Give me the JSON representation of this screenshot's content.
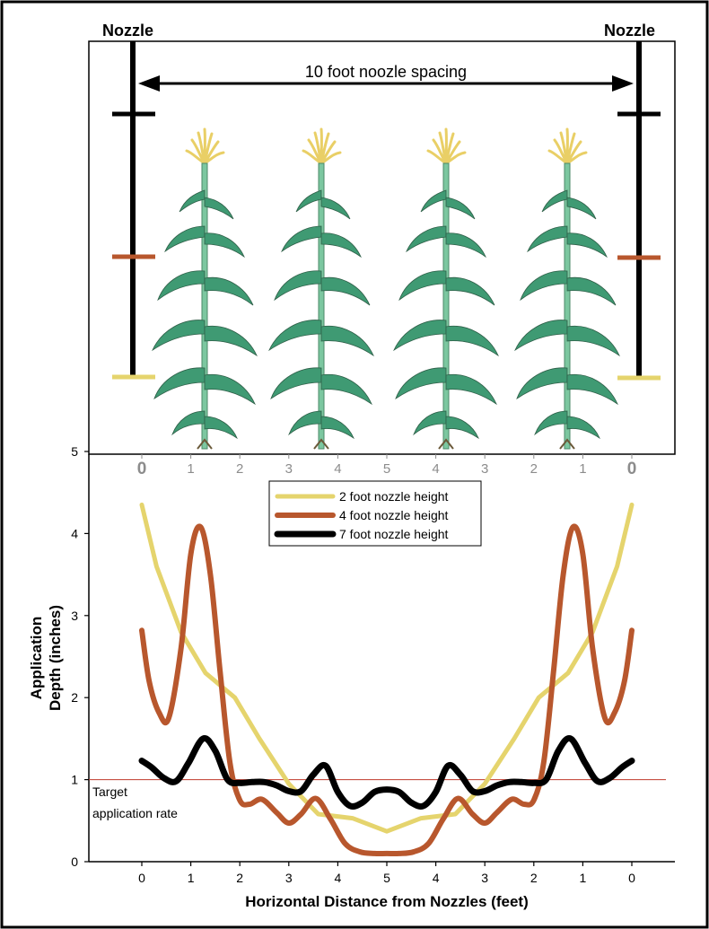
{
  "labels": {
    "nozzle_left": "Nozzle",
    "nozzle_right": "Nozzle",
    "spacing": "10 foot noozle spacing",
    "target_line1": "Target",
    "target_line2": "application rate"
  },
  "top_scale": {
    "ticks": [
      "0",
      "1",
      "2",
      "3",
      "4",
      "5",
      "4",
      "3",
      "2",
      "1",
      "0"
    ]
  },
  "colors": {
    "series_2ft": "#e5d46d",
    "series_4ft": "#b8572d",
    "series_7ft": "#000000",
    "target_line": "#c0392b",
    "top_ticks": "#8c8c8c",
    "leaf": "#3f9a73",
    "tassel": "#e9cf66"
  },
  "chart_data": {
    "type": "line",
    "xlabel": "Horizontal Distance from Nozzles (feet)",
    "ylabel_line1": "Application",
    "ylabel_line2": "Depth (inches)",
    "xlim": [
      0,
      10
    ],
    "ylim": [
      0,
      5
    ],
    "x_tick_values": [
      0,
      1,
      2,
      3,
      4,
      5,
      6,
      7,
      8,
      9,
      10
    ],
    "x_tick_labels": [
      "0",
      "1",
      "2",
      "3",
      "4",
      "5",
      "4",
      "3",
      "2",
      "1",
      "0"
    ],
    "y_ticks": [
      0,
      1,
      2,
      3,
      4,
      5
    ],
    "y_tick_labels": [
      "0",
      "1",
      "2",
      "3",
      "4",
      "5"
    ],
    "target": 1.0,
    "grid": false,
    "legend_position": "top-center",
    "series": [
      {
        "name": "2 foot nozzle height",
        "color": "#e5d46d",
        "x": [
          0,
          0.3,
          0.8,
          1.3,
          1.9,
          2.4,
          3.0,
          3.6,
          4.3,
          5.0,
          5.7,
          6.4,
          7.0,
          7.6,
          8.1,
          8.7,
          9.2,
          9.7,
          10.0
        ],
        "y": [
          4.35,
          3.6,
          2.8,
          2.3,
          2.0,
          1.5,
          0.95,
          0.58,
          0.53,
          0.37,
          0.53,
          0.58,
          0.95,
          1.5,
          2.0,
          2.3,
          2.8,
          3.6,
          4.35
        ]
      },
      {
        "name": "4 foot nozzle height",
        "color": "#b8572d",
        "x": [
          0,
          0.15,
          0.35,
          0.55,
          0.8,
          1.0,
          1.2,
          1.4,
          1.6,
          1.8,
          2.0,
          2.2,
          2.45,
          2.75,
          3.0,
          3.25,
          3.55,
          3.85,
          4.15,
          4.45,
          4.75,
          5.0,
          5.25,
          5.55,
          5.85,
          6.15,
          6.45,
          6.75,
          7.0,
          7.25,
          7.55,
          7.8,
          8.0,
          8.2,
          8.4,
          8.6,
          8.8,
          9.0,
          9.2,
          9.45,
          9.65,
          9.85,
          10.0
        ],
        "y": [
          2.82,
          2.2,
          1.82,
          1.75,
          2.6,
          3.75,
          4.08,
          3.5,
          2.3,
          1.2,
          0.75,
          0.7,
          0.76,
          0.6,
          0.47,
          0.58,
          0.77,
          0.52,
          0.22,
          0.12,
          0.1,
          0.1,
          0.1,
          0.12,
          0.22,
          0.52,
          0.77,
          0.58,
          0.47,
          0.6,
          0.76,
          0.7,
          0.75,
          1.2,
          2.3,
          3.5,
          4.08,
          3.75,
          2.6,
          1.75,
          1.82,
          2.2,
          2.82
        ]
      },
      {
        "name": "7 foot nozzle height",
        "color": "#000000",
        "x": [
          0,
          0.2,
          0.45,
          0.7,
          0.95,
          1.25,
          1.5,
          1.75,
          2.0,
          2.25,
          2.5,
          2.75,
          3.0,
          3.25,
          3.5,
          3.75,
          4.0,
          4.25,
          4.5,
          4.75,
          5.0,
          5.25,
          5.5,
          5.75,
          6.0,
          6.25,
          6.5,
          6.75,
          7.0,
          7.25,
          7.5,
          7.75,
          8.0,
          8.25,
          8.5,
          8.75,
          9.05,
          9.3,
          9.55,
          9.8,
          10.0
        ],
        "y": [
          1.23,
          1.15,
          1.02,
          0.98,
          1.2,
          1.5,
          1.35,
          1.0,
          0.96,
          0.97,
          0.97,
          0.93,
          0.86,
          0.86,
          1.06,
          1.17,
          0.85,
          0.68,
          0.72,
          0.85,
          0.88,
          0.85,
          0.72,
          0.68,
          0.85,
          1.17,
          1.06,
          0.86,
          0.86,
          0.93,
          0.97,
          0.97,
          0.96,
          1.0,
          1.35,
          1.5,
          1.2,
          0.98,
          1.02,
          1.15,
          1.23
        ]
      }
    ]
  }
}
